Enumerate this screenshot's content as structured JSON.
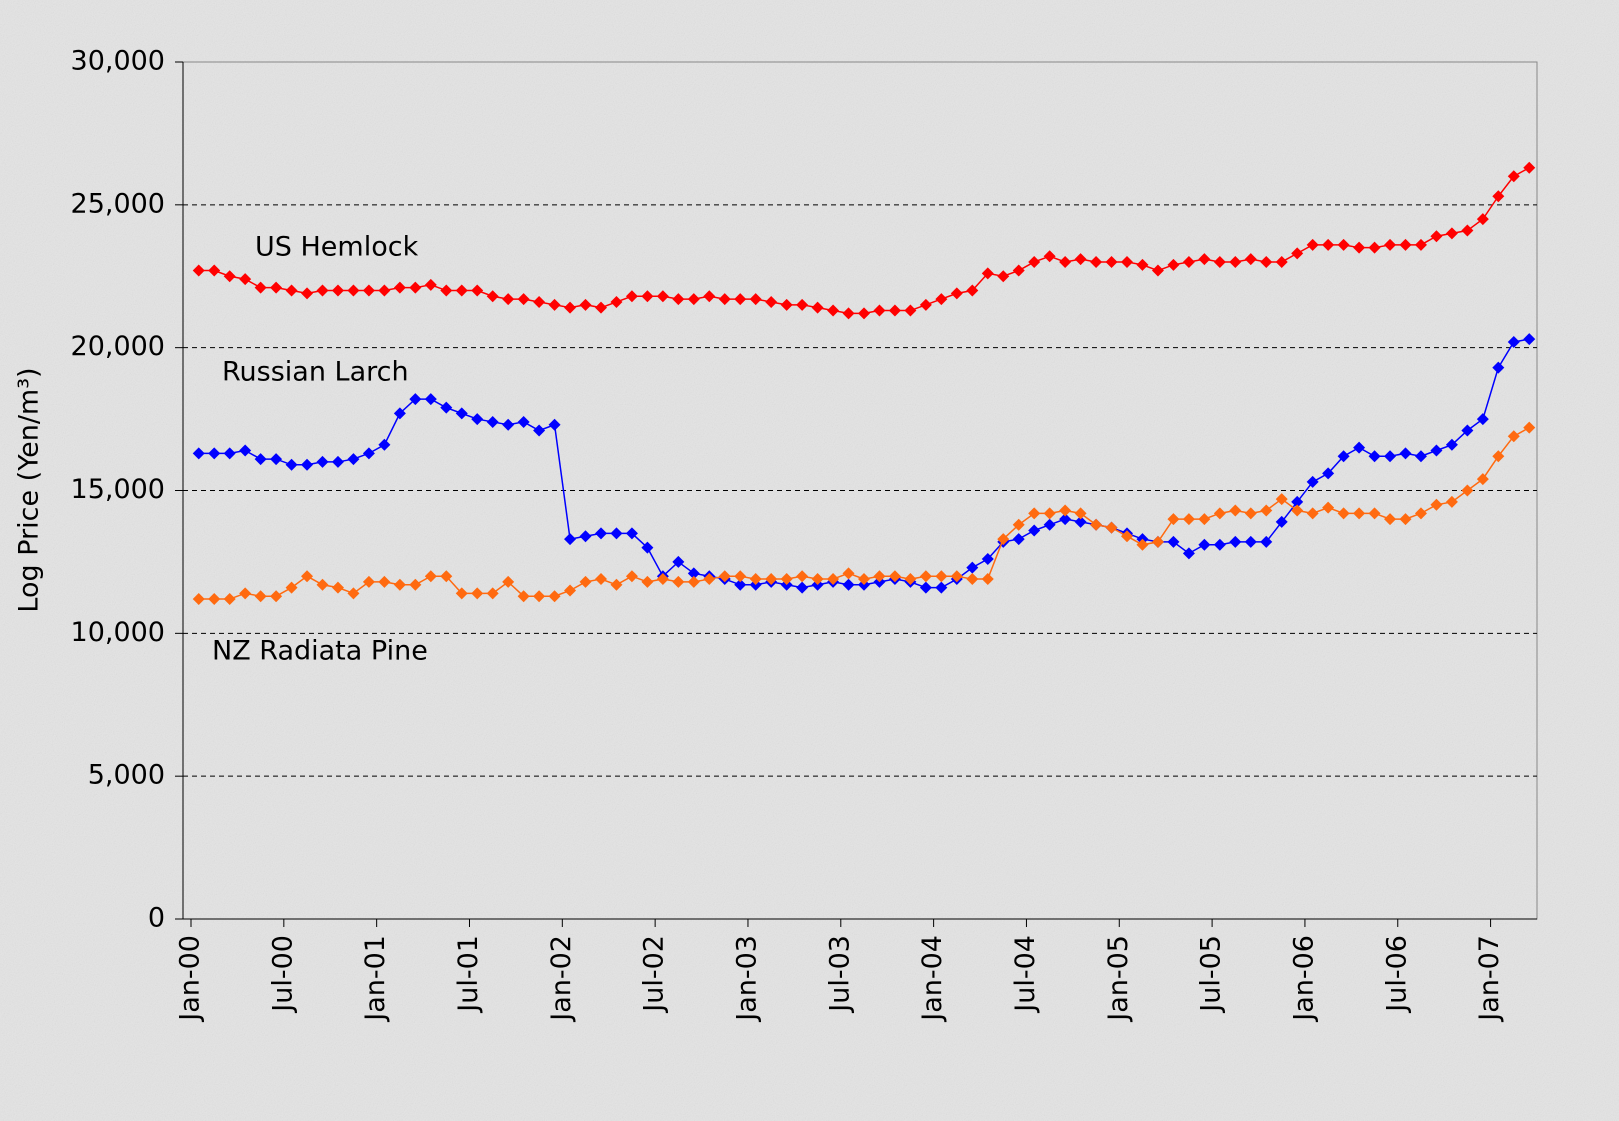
{
  "chart_data": {
    "type": "line",
    "y_label": "Log Price (Yen/m³)",
    "categories": [
      "Jan-00",
      null,
      null,
      null,
      null,
      null,
      "Jul-00",
      null,
      null,
      null,
      null,
      null,
      "Jan-01",
      null,
      null,
      null,
      null,
      null,
      "Jul-01",
      null,
      null,
      null,
      null,
      null,
      "Jan-02",
      null,
      null,
      null,
      null,
      null,
      "Jul-02",
      null,
      null,
      null,
      null,
      null,
      "Jan-03",
      null,
      null,
      null,
      null,
      null,
      "Jul-03",
      null,
      null,
      null,
      null,
      null,
      "Jan-04",
      null,
      null,
      null,
      null,
      null,
      "Jul-04",
      null,
      null,
      null,
      null,
      null,
      "Jan-05",
      null,
      null,
      null,
      null,
      null,
      "Jul-05",
      null,
      null,
      null,
      null,
      null,
      "Jan-06",
      null,
      null,
      null,
      null,
      null,
      "Jul-06",
      null,
      null,
      null,
      null,
      null,
      "Jan-07",
      null,
      null
    ],
    "series": [
      {
        "name": "US Hemlock",
        "color": "#ff0000",
        "values": [
          22700,
          22700,
          22500,
          22400,
          22100,
          22100,
          22000,
          21900,
          22000,
          22000,
          22000,
          22000,
          22000,
          22100,
          22100,
          22200,
          22000,
          22000,
          22000,
          21800,
          21700,
          21700,
          21600,
          21500,
          21400,
          21500,
          21400,
          21600,
          21800,
          21800,
          21800,
          21700,
          21700,
          21800,
          21700,
          21700,
          21700,
          21600,
          21500,
          21500,
          21400,
          21300,
          21200,
          21200,
          21300,
          21300,
          21300,
          21500,
          21700,
          21900,
          22000,
          22600,
          22500,
          22700,
          23000,
          23200,
          23000,
          23100,
          23000,
          23000,
          23000,
          22900,
          22700,
          22900,
          23000,
          23100,
          23000,
          23000,
          23100,
          23000,
          23000,
          23300,
          23600,
          23600,
          23600,
          23500,
          23500,
          23600,
          23600,
          23600,
          23900,
          24000,
          24100,
          24500,
          25300,
          26000,
          26300
        ]
      },
      {
        "name": "Russian Larch",
        "color": "#0000ff",
        "values": [
          16300,
          16300,
          16300,
          16400,
          16100,
          16100,
          15900,
          15900,
          16000,
          16000,
          16100,
          16300,
          16600,
          17700,
          18200,
          18200,
          17900,
          17700,
          17500,
          17400,
          17300,
          17400,
          17100,
          17300,
          13300,
          13400,
          13500,
          13500,
          13500,
          13000,
          12000,
          12500,
          12100,
          12000,
          11900,
          11700,
          11700,
          11800,
          11700,
          11600,
          11700,
          11800,
          11700,
          11700,
          11800,
          11900,
          11800,
          11600,
          11600,
          11900,
          12300,
          12600,
          13200,
          13300,
          13600,
          13800,
          14000,
          13900,
          13800,
          13700,
          13500,
          13300,
          13200,
          13200,
          12800,
          13100,
          13100,
          13200,
          13200,
          13200,
          13900,
          14600,
          15300,
          15600,
          16200,
          16500,
          16200,
          16200,
          16300,
          16200,
          16400,
          16600,
          17100,
          17500,
          19300,
          20200,
          20300
        ]
      },
      {
        "name": "NZ Radiata Pine",
        "color": "#ff6a10",
        "values": [
          11200,
          11200,
          11200,
          11400,
          11300,
          11300,
          11600,
          12000,
          11700,
          11600,
          11400,
          11800,
          11800,
          11700,
          11700,
          12000,
          12000,
          11400,
          11400,
          11400,
          11800,
          11300,
          11300,
          11300,
          11500,
          11800,
          11900,
          11700,
          12000,
          11800,
          11900,
          11800,
          11800,
          11900,
          12000,
          12000,
          11900,
          11900,
          11900,
          12000,
          11900,
          11900,
          12100,
          11900,
          12000,
          12000,
          11900,
          12000,
          12000,
          12000,
          11900,
          11900,
          13300,
          13800,
          14200,
          14200,
          14300,
          14200,
          13800,
          13700,
          13400,
          13100,
          13200,
          14000,
          14000,
          14000,
          14200,
          14300,
          14200,
          14300,
          14700,
          14300,
          14200,
          14400,
          14200,
          14200,
          14200,
          14000,
          14000,
          14200,
          14500,
          14600,
          15000,
          15400,
          16200,
          16900,
          17200
        ]
      }
    ],
    "ylim": [
      0,
      30000
    ],
    "yticks": [
      0,
      {
        "value": 5000,
        "label": "5,000"
      },
      {
        "value": 10000,
        "label": "10,000"
      },
      {
        "value": 15000,
        "label": "15,000"
      },
      {
        "value": 20000,
        "label": "20,000"
      },
      {
        "value": 25000,
        "label": "25,000"
      },
      {
        "value": 30000,
        "label": "30,000"
      }
    ],
    "grid": true
  }
}
